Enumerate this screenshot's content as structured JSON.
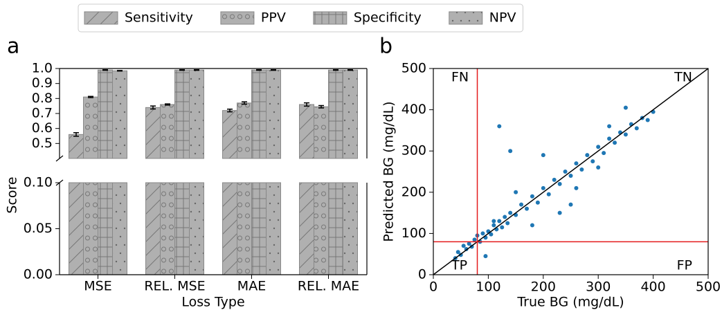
{
  "chart_data": [
    {
      "type": "broken-bar",
      "panel_label": "a",
      "x_label": "Loss Type",
      "y_label": "Score",
      "categories": [
        "MSE",
        "REL. MSE",
        "MAE",
        "REL. MAE"
      ],
      "series": [
        {
          "name": "Sensitivity",
          "color": "#b0b0b0",
          "hatch": "/",
          "values": [
            0.56,
            0.74,
            0.72,
            0.76
          ],
          "errors": [
            0.012,
            0.01,
            0.009,
            0.011
          ]
        },
        {
          "name": "PPV",
          "color": "#b0b0b0",
          "hatch": "o",
          "values": [
            0.81,
            0.76,
            0.77,
            0.745
          ],
          "errors": [
            0.004,
            0.004,
            0.008,
            0.008
          ]
        },
        {
          "name": "Specificity",
          "color": "#b0b0b0",
          "hatch": "+",
          "values": [
            0.99,
            0.99,
            0.99,
            0.99
          ],
          "errors": [
            0.002,
            0.002,
            0.002,
            0.002
          ]
        },
        {
          "name": "NPV",
          "color": "#b0b0b0",
          "hatch": ".",
          "values": [
            0.985,
            0.99,
            0.99,
            0.99
          ],
          "errors": [
            0.002,
            0.002,
            0.002,
            0.002
          ]
        }
      ],
      "ylim_segments": [
        [
          0,
          0.1
        ],
        [
          0.4,
          1.0
        ]
      ],
      "yticks": [
        {
          "value": 0,
          "label": "0.00"
        },
        {
          "value": 0.05,
          "label": "0.05"
        },
        {
          "value": 0.1,
          "label": "0.10"
        },
        0.5,
        0.6,
        0.7,
        0.8,
        0.9,
        {
          "value": 1,
          "label": "1.0"
        }
      ],
      "legend": "top"
    },
    {
      "type": "scatter",
      "panel_label": "b",
      "x_label": "True BG (mg/dL)",
      "y_label": "Predicted BG (mg/dL)",
      "color": "#1f77b4",
      "x": [
        40,
        45,
        50,
        55,
        60,
        65,
        70,
        75,
        80,
        85,
        90,
        95,
        100,
        105,
        110,
        115,
        120,
        125,
        130,
        135,
        140,
        150,
        160,
        170,
        180,
        190,
        200,
        210,
        220,
        230,
        240,
        250,
        260,
        270,
        280,
        290,
        300,
        310,
        320,
        330,
        340,
        350,
        360,
        370,
        380,
        390,
        400,
        120,
        140,
        200,
        250,
        300,
        150,
        180,
        230,
        320,
        95,
        110,
        260,
        350
      ],
      "y": [
        40,
        55,
        48,
        70,
        62,
        75,
        68,
        85,
        95,
        80,
        100,
        90,
        105,
        98,
        120,
        110,
        130,
        115,
        140,
        125,
        150,
        145,
        170,
        160,
        190,
        175,
        210,
        195,
        230,
        220,
        250,
        240,
        270,
        255,
        290,
        275,
        310,
        295,
        330,
        320,
        345,
        340,
        365,
        355,
        380,
        375,
        395,
        360,
        300,
        290,
        170,
        260,
        200,
        120,
        150,
        360,
        45,
        130,
        210,
        405
      ],
      "xlim": [
        0,
        500
      ],
      "ylim": [
        0,
        500
      ],
      "xticks": [
        0,
        100,
        200,
        300,
        400,
        500
      ],
      "yticks": [
        0,
        100,
        200,
        300,
        400,
        500
      ],
      "threshold": 80,
      "threshold_color": "#e41a1c",
      "identity_line": true,
      "annotations": [
        "FN",
        "TN",
        "TP",
        "FP"
      ]
    }
  ]
}
